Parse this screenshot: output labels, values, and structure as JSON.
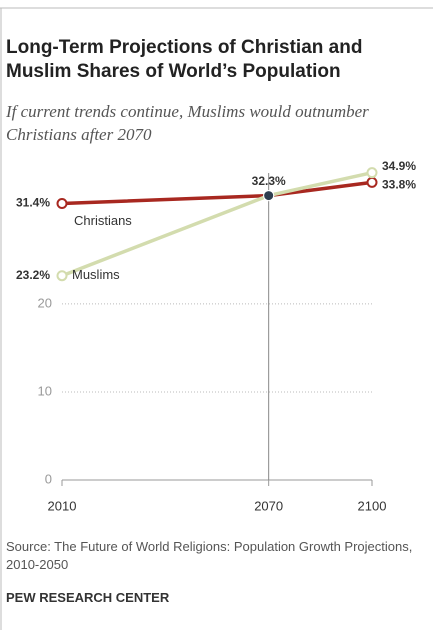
{
  "chart_data": {
    "type": "line",
    "title": "Long-Term Projections of Christian and Muslim Shares of World’s Population",
    "subtitle": "If current trends continue, Muslims would outnumber Christians after 2070",
    "x": [
      2010,
      2070,
      2100
    ],
    "xlim": [
      2010,
      2100
    ],
    "xticks": [
      2010,
      2070,
      2100
    ],
    "ylim": [
      0,
      36
    ],
    "yticks": [
      0,
      10,
      20
    ],
    "grid": true,
    "series": [
      {
        "name": "Christians",
        "color": "#a82820",
        "values": [
          31.4,
          32.3,
          33.8
        ],
        "value_labels": [
          "31.4%",
          "32.3%",
          "33.8%"
        ]
      },
      {
        "name": "Muslims",
        "color": "#d3dcae",
        "values": [
          23.2,
          32.3,
          34.9
        ],
        "value_labels": [
          "23.2%",
          null,
          "34.9%"
        ]
      }
    ],
    "source": "Source: The Future of World Religions: Population Growth Projections, 2010-2050",
    "credit": "PEW RESEARCH CENTER"
  }
}
